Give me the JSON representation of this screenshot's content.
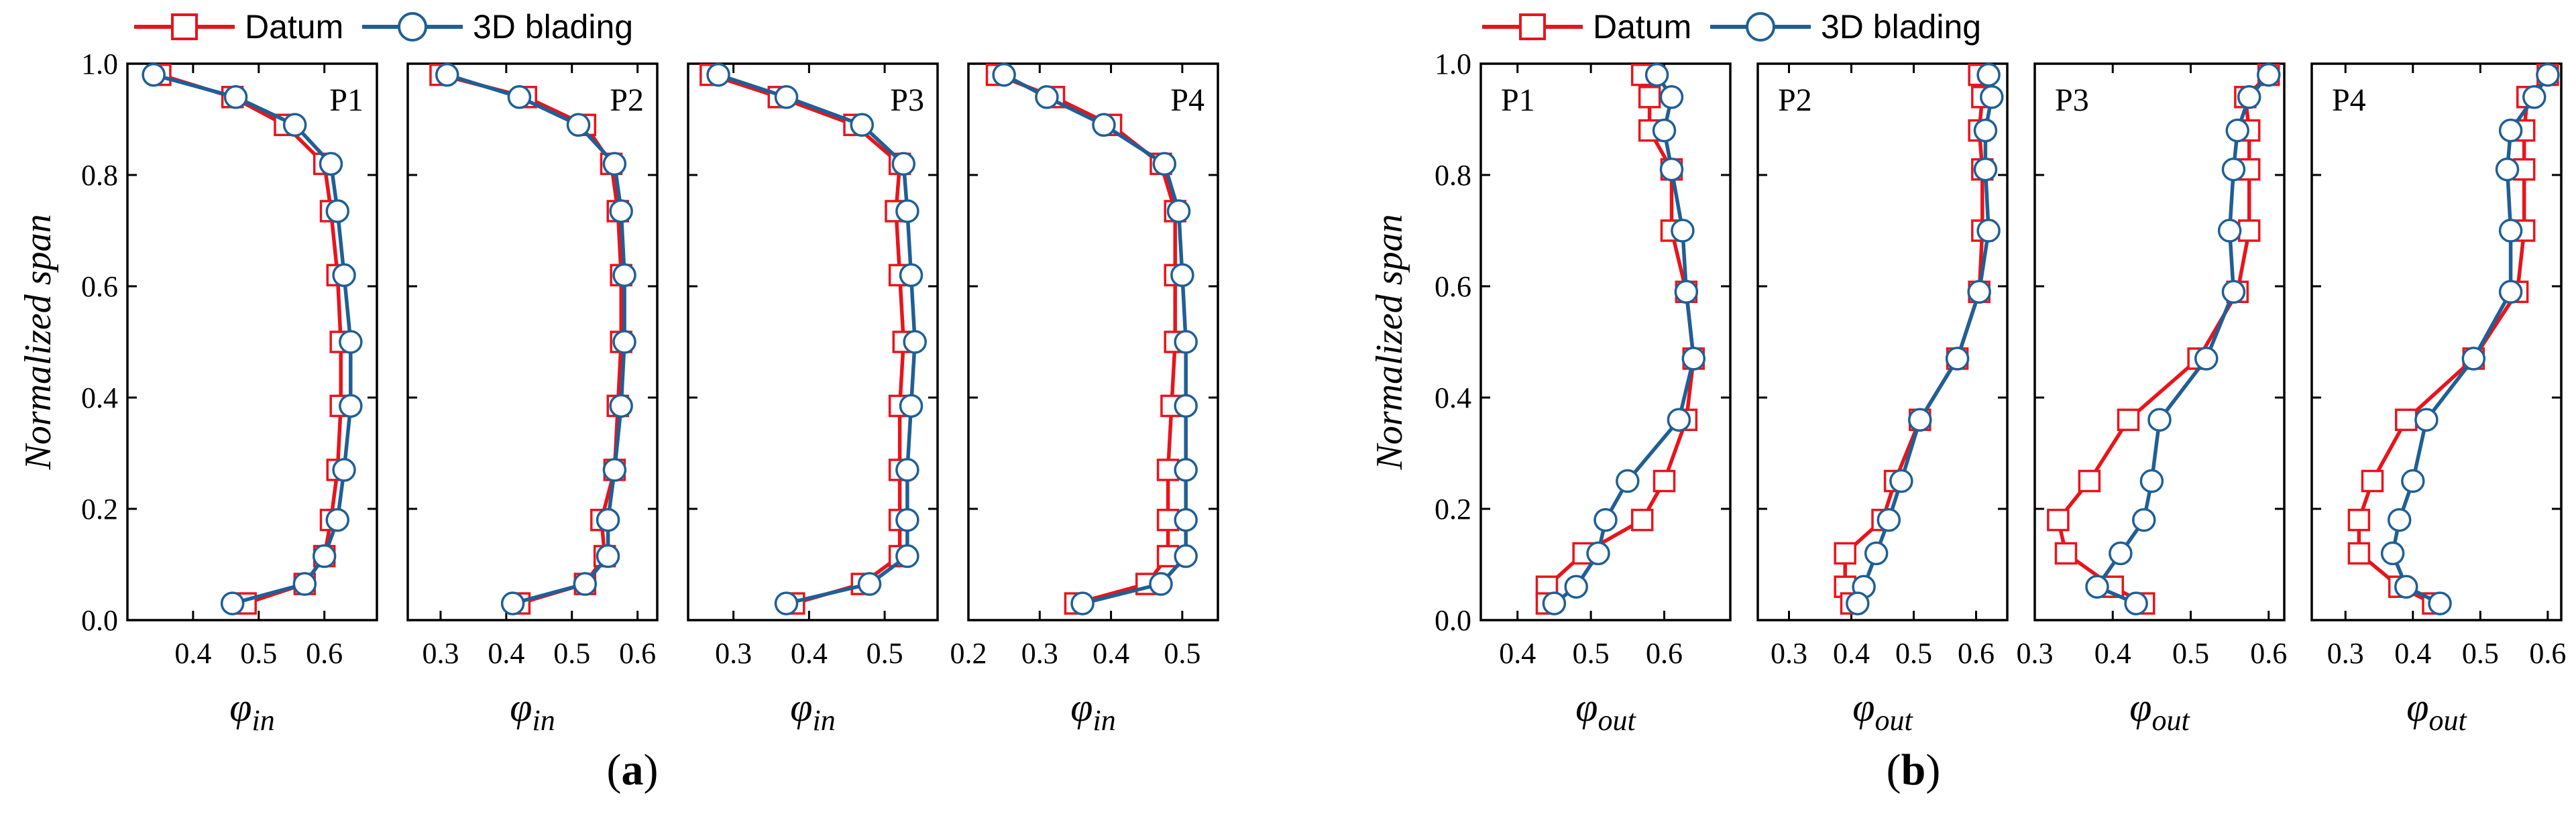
{
  "legend": {
    "series": [
      {
        "name": "Datum",
        "color": "#e8141c",
        "marker": "square"
      },
      {
        "name": "3D blading",
        "color": "#1f5f96",
        "marker": "circle"
      }
    ]
  },
  "shared_axes": {
    "ylabel": "Normalized span",
    "ylim": [
      0.0,
      1.0
    ],
    "yticks": [
      0.0,
      0.2,
      0.4,
      0.6,
      0.8,
      1.0
    ],
    "ytick_labels": [
      "0.0",
      "0.2",
      "0.4",
      "0.6",
      "0.8",
      "1.0"
    ]
  },
  "groups": [
    {
      "label": "(a)",
      "label_main": "a",
      "xlabel_symbol": "φ",
      "xlabel_sub": "in"
    },
    {
      "label": "(b)",
      "label_main": "b",
      "xlabel_symbol": "φ",
      "xlabel_sub": "out"
    }
  ],
  "chart_data": [
    {
      "type": "line",
      "group": 0,
      "title": "P1",
      "xlim": [
        0.3,
        0.68
      ],
      "xticks": [
        0.4,
        0.5,
        0.6
      ],
      "xtick_labels": [
        "0.4",
        "0.5",
        "0.6"
      ],
      "series": [
        {
          "name": "Datum",
          "points": [
            [
              0.35,
              0.98
            ],
            [
              0.46,
              0.94
            ],
            [
              0.54,
              0.89
            ],
            [
              0.6,
              0.82
            ],
            [
              0.61,
              0.735
            ],
            [
              0.62,
              0.62
            ],
            [
              0.625,
              0.5
            ],
            [
              0.625,
              0.385
            ],
            [
              0.62,
              0.27
            ],
            [
              0.61,
              0.18
            ],
            [
              0.6,
              0.115
            ],
            [
              0.57,
              0.065
            ],
            [
              0.48,
              0.03
            ]
          ]
        },
        {
          "name": "3D blading",
          "points": [
            [
              0.34,
              0.98
            ],
            [
              0.465,
              0.94
            ],
            [
              0.555,
              0.89
            ],
            [
              0.61,
              0.82
            ],
            [
              0.62,
              0.735
            ],
            [
              0.63,
              0.62
            ],
            [
              0.64,
              0.5
            ],
            [
              0.64,
              0.385
            ],
            [
              0.63,
              0.27
            ],
            [
              0.62,
              0.18
            ],
            [
              0.6,
              0.115
            ],
            [
              0.57,
              0.065
            ],
            [
              0.46,
              0.03
            ]
          ]
        }
      ]
    },
    {
      "type": "line",
      "group": 0,
      "title": "P2",
      "xlim": [
        0.25,
        0.63
      ],
      "xticks": [
        0.3,
        0.4,
        0.5,
        0.6
      ],
      "xtick_labels": [
        "0.3",
        "0.4",
        "0.5",
        "0.6"
      ],
      "series": [
        {
          "name": "Datum",
          "points": [
            [
              0.3,
              0.98
            ],
            [
              0.43,
              0.94
            ],
            [
              0.52,
              0.89
            ],
            [
              0.56,
              0.82
            ],
            [
              0.57,
              0.735
            ],
            [
              0.575,
              0.62
            ],
            [
              0.575,
              0.5
            ],
            [
              0.57,
              0.385
            ],
            [
              0.565,
              0.27
            ],
            [
              0.545,
              0.18
            ],
            [
              0.55,
              0.115
            ],
            [
              0.52,
              0.065
            ],
            [
              0.42,
              0.03
            ]
          ]
        },
        {
          "name": "3D blading",
          "points": [
            [
              0.31,
              0.98
            ],
            [
              0.42,
              0.94
            ],
            [
              0.51,
              0.89
            ],
            [
              0.565,
              0.82
            ],
            [
              0.575,
              0.735
            ],
            [
              0.58,
              0.62
            ],
            [
              0.58,
              0.5
            ],
            [
              0.575,
              0.385
            ],
            [
              0.565,
              0.27
            ],
            [
              0.555,
              0.18
            ],
            [
              0.555,
              0.115
            ],
            [
              0.52,
              0.065
            ],
            [
              0.41,
              0.03
            ]
          ]
        }
      ]
    },
    {
      "type": "line",
      "group": 0,
      "title": "P3",
      "xlim": [
        0.24,
        0.57
      ],
      "xticks": [
        0.3,
        0.4,
        0.5
      ],
      "xtick_labels": [
        "0.3",
        "0.4",
        "0.5"
      ],
      "series": [
        {
          "name": "Datum",
          "points": [
            [
              0.27,
              0.98
            ],
            [
              0.36,
              0.94
            ],
            [
              0.46,
              0.89
            ],
            [
              0.52,
              0.82
            ],
            [
              0.515,
              0.735
            ],
            [
              0.52,
              0.62
            ],
            [
              0.525,
              0.5
            ],
            [
              0.52,
              0.385
            ],
            [
              0.52,
              0.27
            ],
            [
              0.52,
              0.18
            ],
            [
              0.52,
              0.115
            ],
            [
              0.47,
              0.065
            ],
            [
              0.38,
              0.03
            ]
          ]
        },
        {
          "name": "3D blading",
          "points": [
            [
              0.28,
              0.98
            ],
            [
              0.37,
              0.94
            ],
            [
              0.47,
              0.89
            ],
            [
              0.525,
              0.82
            ],
            [
              0.53,
              0.735
            ],
            [
              0.535,
              0.62
            ],
            [
              0.54,
              0.5
            ],
            [
              0.535,
              0.385
            ],
            [
              0.53,
              0.27
            ],
            [
              0.53,
              0.18
            ],
            [
              0.53,
              0.115
            ],
            [
              0.48,
              0.065
            ],
            [
              0.37,
              0.03
            ]
          ]
        }
      ]
    },
    {
      "type": "line",
      "group": 0,
      "title": "P4",
      "xlim": [
        0.2,
        0.55
      ],
      "xticks": [
        0.2,
        0.3,
        0.4,
        0.5
      ],
      "xtick_labels": [
        "0.2",
        "0.3",
        "0.4",
        "0.5"
      ],
      "series": [
        {
          "name": "Datum",
          "points": [
            [
              0.24,
              0.98
            ],
            [
              0.32,
              0.94
            ],
            [
              0.4,
              0.89
            ],
            [
              0.47,
              0.82
            ],
            [
              0.49,
              0.735
            ],
            [
              0.49,
              0.62
            ],
            [
              0.49,
              0.5
            ],
            [
              0.485,
              0.385
            ],
            [
              0.48,
              0.27
            ],
            [
              0.48,
              0.18
            ],
            [
              0.48,
              0.115
            ],
            [
              0.45,
              0.065
            ],
            [
              0.35,
              0.03
            ]
          ]
        },
        {
          "name": "3D blading",
          "points": [
            [
              0.25,
              0.98
            ],
            [
              0.31,
              0.94
            ],
            [
              0.39,
              0.89
            ],
            [
              0.475,
              0.82
            ],
            [
              0.495,
              0.735
            ],
            [
              0.5,
              0.62
            ],
            [
              0.505,
              0.5
            ],
            [
              0.505,
              0.385
            ],
            [
              0.505,
              0.27
            ],
            [
              0.505,
              0.18
            ],
            [
              0.505,
              0.115
            ],
            [
              0.47,
              0.065
            ],
            [
              0.36,
              0.03
            ]
          ]
        }
      ]
    },
    {
      "type": "line",
      "group": 1,
      "title": "P1",
      "xlim": [
        0.35,
        0.69
      ],
      "xticks": [
        0.4,
        0.5,
        0.6
      ],
      "xtick_labels": [
        "0.4",
        "0.5",
        "0.6"
      ],
      "series": [
        {
          "name": "Datum",
          "points": [
            [
              0.57,
              0.98
            ],
            [
              0.58,
              0.94
            ],
            [
              0.58,
              0.88
            ],
            [
              0.61,
              0.81
            ],
            [
              0.61,
              0.7
            ],
            [
              0.63,
              0.59
            ],
            [
              0.64,
              0.47
            ],
            [
              0.63,
              0.36
            ],
            [
              0.6,
              0.25
            ],
            [
              0.57,
              0.18
            ],
            [
              0.49,
              0.12
            ],
            [
              0.44,
              0.06
            ],
            [
              0.44,
              0.03
            ]
          ]
        },
        {
          "name": "3D blading",
          "points": [
            [
              0.59,
              0.98
            ],
            [
              0.61,
              0.94
            ],
            [
              0.6,
              0.88
            ],
            [
              0.61,
              0.81
            ],
            [
              0.625,
              0.7
            ],
            [
              0.63,
              0.59
            ],
            [
              0.64,
              0.47
            ],
            [
              0.62,
              0.36
            ],
            [
              0.55,
              0.25
            ],
            [
              0.52,
              0.18
            ],
            [
              0.51,
              0.12
            ],
            [
              0.48,
              0.06
            ],
            [
              0.45,
              0.03
            ]
          ]
        }
      ]
    },
    {
      "type": "line",
      "group": 1,
      "title": "P2",
      "xlim": [
        0.25,
        0.65
      ],
      "xticks": [
        0.3,
        0.4,
        0.5,
        0.6
      ],
      "xtick_labels": [
        "0.3",
        "0.4",
        "0.5",
        "0.6"
      ],
      "series": [
        {
          "name": "Datum",
          "points": [
            [
              0.605,
              0.98
            ],
            [
              0.61,
              0.94
            ],
            [
              0.605,
              0.88
            ],
            [
              0.61,
              0.81
            ],
            [
              0.61,
              0.7
            ],
            [
              0.605,
              0.59
            ],
            [
              0.57,
              0.47
            ],
            [
              0.51,
              0.36
            ],
            [
              0.47,
              0.25
            ],
            [
              0.45,
              0.18
            ],
            [
              0.39,
              0.12
            ],
            [
              0.39,
              0.06
            ],
            [
              0.4,
              0.03
            ]
          ]
        },
        {
          "name": "3D blading",
          "points": [
            [
              0.62,
              0.98
            ],
            [
              0.625,
              0.94
            ],
            [
              0.615,
              0.88
            ],
            [
              0.615,
              0.81
            ],
            [
              0.62,
              0.7
            ],
            [
              0.605,
              0.59
            ],
            [
              0.57,
              0.47
            ],
            [
              0.51,
              0.36
            ],
            [
              0.48,
              0.25
            ],
            [
              0.46,
              0.18
            ],
            [
              0.44,
              0.12
            ],
            [
              0.42,
              0.06
            ],
            [
              0.41,
              0.03
            ]
          ]
        }
      ]
    },
    {
      "type": "line",
      "group": 1,
      "title": "P3",
      "xlim": [
        0.3,
        0.62
      ],
      "xticks": [
        0.3,
        0.4,
        0.5,
        0.6
      ],
      "xtick_labels": [
        "0.3",
        "0.4",
        "0.5",
        "0.6"
      ],
      "series": [
        {
          "name": "Datum",
          "points": [
            [
              0.6,
              0.98
            ],
            [
              0.57,
              0.94
            ],
            [
              0.575,
              0.88
            ],
            [
              0.575,
              0.81
            ],
            [
              0.575,
              0.7
            ],
            [
              0.56,
              0.59
            ],
            [
              0.51,
              0.47
            ],
            [
              0.42,
              0.36
            ],
            [
              0.37,
              0.25
            ],
            [
              0.33,
              0.18
            ],
            [
              0.34,
              0.12
            ],
            [
              0.4,
              0.06
            ],
            [
              0.44,
              0.03
            ]
          ]
        },
        {
          "name": "3D blading",
          "points": [
            [
              0.6,
              0.98
            ],
            [
              0.575,
              0.94
            ],
            [
              0.56,
              0.88
            ],
            [
              0.555,
              0.81
            ],
            [
              0.55,
              0.7
            ],
            [
              0.555,
              0.59
            ],
            [
              0.52,
              0.47
            ],
            [
              0.46,
              0.36
            ],
            [
              0.45,
              0.25
            ],
            [
              0.44,
              0.18
            ],
            [
              0.41,
              0.12
            ],
            [
              0.38,
              0.06
            ],
            [
              0.43,
              0.03
            ]
          ]
        }
      ]
    },
    {
      "type": "line",
      "group": 1,
      "title": "P4",
      "xlim": [
        0.25,
        0.62
      ],
      "xticks": [
        0.3,
        0.4,
        0.5,
        0.6
      ],
      "xtick_labels": [
        "0.3",
        "0.4",
        "0.5",
        "0.6"
      ],
      "series": [
        {
          "name": "Datum",
          "points": [
            [
              0.6,
              0.98
            ],
            [
              0.57,
              0.94
            ],
            [
              0.565,
              0.88
            ],
            [
              0.565,
              0.81
            ],
            [
              0.565,
              0.7
            ],
            [
              0.555,
              0.59
            ],
            [
              0.49,
              0.47
            ],
            [
              0.39,
              0.36
            ],
            [
              0.34,
              0.25
            ],
            [
              0.32,
              0.18
            ],
            [
              0.32,
              0.12
            ],
            [
              0.38,
              0.06
            ],
            [
              0.43,
              0.03
            ]
          ]
        },
        {
          "name": "3D blading",
          "points": [
            [
              0.6,
              0.98
            ],
            [
              0.58,
              0.94
            ],
            [
              0.545,
              0.88
            ],
            [
              0.54,
              0.81
            ],
            [
              0.545,
              0.7
            ],
            [
              0.545,
              0.59
            ],
            [
              0.49,
              0.47
            ],
            [
              0.42,
              0.36
            ],
            [
              0.4,
              0.25
            ],
            [
              0.38,
              0.18
            ],
            [
              0.37,
              0.12
            ],
            [
              0.39,
              0.06
            ],
            [
              0.44,
              0.03
            ]
          ]
        }
      ]
    }
  ]
}
